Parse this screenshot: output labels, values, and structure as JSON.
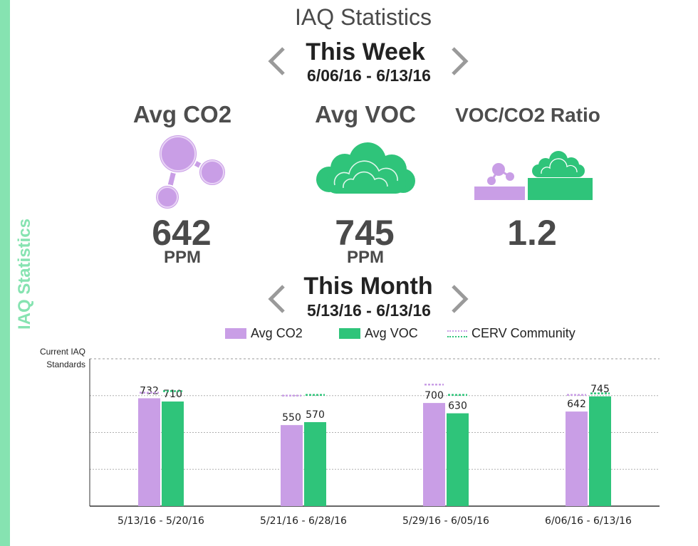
{
  "sidebar": {
    "label": "IAQ Statistics",
    "color": "#86e3b1"
  },
  "header": {
    "title": "IAQ Statistics"
  },
  "week": {
    "title": "This Week",
    "range": "6/06/16 - 6/13/16",
    "prev_icon": "chevron-left-icon",
    "next_icon": "chevron-right-icon"
  },
  "metrics": {
    "co2": {
      "label": "Avg CO2",
      "value": "642",
      "unit": "PPM",
      "icon": "molecule-icon"
    },
    "voc": {
      "label": "Avg VOC",
      "value": "745",
      "unit": "PPM",
      "icon": "cloud-icon"
    },
    "ratio": {
      "label": "VOC/CO2 Ratio",
      "value": "1.2",
      "icon": "ratio-icon"
    }
  },
  "month": {
    "title": "This Month",
    "range": "5/13/16 - 6/13/16",
    "prev_icon": "chevron-left-icon",
    "next_icon": "chevron-right-icon"
  },
  "colors": {
    "co2": "#c99ee6",
    "voc": "#2fc47a",
    "community_co2": "#c99ee6",
    "community_voc": "#2fc47a"
  },
  "chart_data": {
    "type": "bar",
    "title": "",
    "xlabel": "",
    "ylabel": "",
    "categories": [
      "5/13/16 - 5/20/16",
      "5/21/16 - 6/28/16",
      "5/29/16 - 6/05/16",
      "6/06/16 - 6/13/16"
    ],
    "series": [
      {
        "name": "Avg CO2",
        "values": [
          732,
          550,
          700,
          642
        ]
      },
      {
        "name": "Avg VOC",
        "values": [
          710,
          570,
          630,
          745
        ]
      }
    ],
    "community": {
      "name": "CERV Community",
      "co2": [
        770,
        750,
        825,
        755
      ],
      "voc": [
        780,
        755,
        755,
        765
      ]
    },
    "reference_line": {
      "label_line1": "Current IAQ",
      "label_line2": "Standards",
      "value": 1000
    },
    "ylim": [
      0,
      1000
    ],
    "grid": true,
    "legend": "top"
  }
}
